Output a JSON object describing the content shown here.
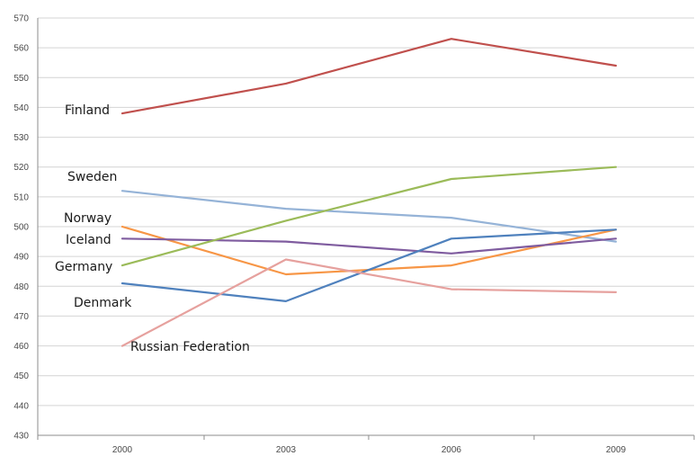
{
  "chart_data": {
    "type": "line",
    "title": "",
    "xlabel": "",
    "ylabel": "",
    "categories": [
      "2000",
      "2003",
      "2006",
      "2009"
    ],
    "yticks": [
      430,
      440,
      450,
      460,
      470,
      480,
      490,
      500,
      510,
      520,
      530,
      540,
      550,
      560,
      570
    ],
    "ylim": [
      430,
      570
    ],
    "grid": true,
    "legend": "none",
    "series": [
      {
        "name": "Finland",
        "values": [
          538,
          548,
          563,
          554
        ],
        "color": "#c0504d"
      },
      {
        "name": "Sweden",
        "values": [
          512,
          506,
          503,
          495
        ],
        "color": "#95b3d7"
      },
      {
        "name": "Norway",
        "values": [
          500,
          484,
          487,
          499
        ],
        "color": "#f79646"
      },
      {
        "name": "Iceland",
        "values": [
          496,
          495,
          491,
          496
        ],
        "color": "#7f5c9f"
      },
      {
        "name": "Germany",
        "values": [
          487,
          502,
          516,
          520
        ],
        "color": "#9bbb59"
      },
      {
        "name": "Denmark",
        "values": [
          481,
          475,
          496,
          499
        ],
        "color": "#4f81bd"
      },
      {
        "name": "Russian Federation",
        "values": [
          460,
          489,
          479,
          478
        ],
        "color": "#e6a19e"
      }
    ]
  }
}
